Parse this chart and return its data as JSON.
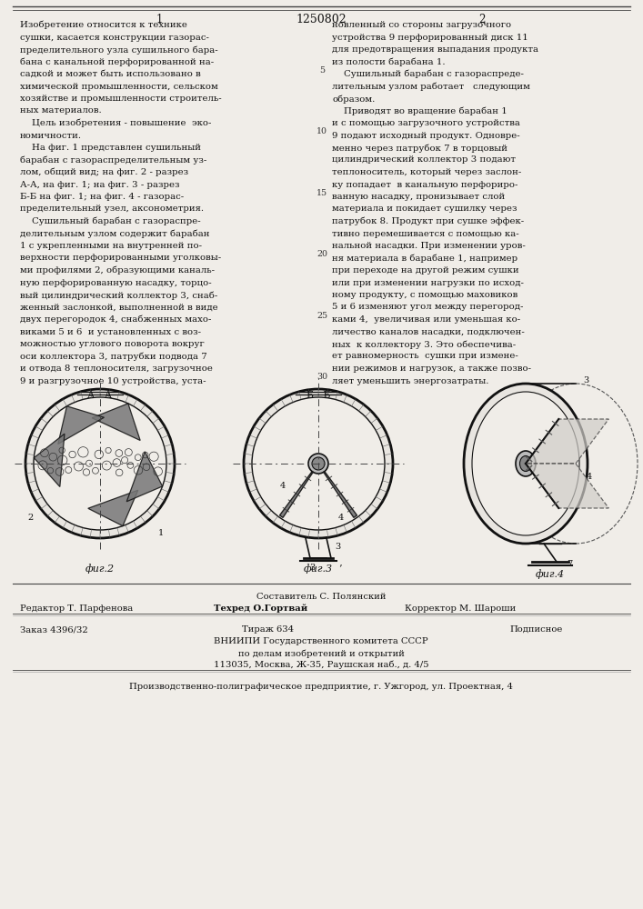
{
  "bg_color": "#f0ede8",
  "patent_number": "1250802",
  "c1_lines": [
    "Изобретение относится к технике",
    "сушки, касается конструкции газорас-",
    "пределительного узла сушильного бара-",
    "бана с канальной перфорированной на-",
    "садкой и может быть использовано в",
    "химической промышленности, сельском",
    "хозяйстве и промышленности строитель-",
    "ных материалов.",
    "    Цель изобретения - повышение  эко-",
    "номичности.",
    "    На фиг. 1 представлен сушильный",
    "барабан с газораспределительным уз-",
    "лом, общий вид; на фиг. 2 - разрез",
    "А-А, на фиг. 1; на фиг. 3 - разрез",
    "Б-Б на фиг. 1; на фиг. 4 - газорас-",
    "пределительный узел, аксонометрия.",
    "    Сушильный барабан с газораспре-",
    "делительным узлом содержит барабан",
    "1 с укрепленными на внутренней по-",
    "верхности перфорированными уголковы-",
    "ми профилями 2, образующими каналь-",
    "ную перфорированную насадку, торцо-",
    "вый цилиндрический коллектор 3, снаб-",
    "женный заслонкой, выполненной в виде",
    "двух перегородок 4, снабженных махо-",
    "виками 5 и 6  и установленных с воз-",
    "можностью углового поворота вокруг",
    "оси коллектора 3, патрубки подвода 7",
    "и отвода 8 теплоносителя, загрузочное",
    "9 и разгрузочное 10 устройства, уста-"
  ],
  "c2_lines": [
    "новленный со стороны загрузочного",
    "устройства 9 перфорированный диск 11",
    "для предотвращения выпадания продукта",
    "из полости барабана 1.",
    "    Сушильный барабан с газораспреде-",
    "лительным узлом работает   следующим",
    "образом.",
    "    Приводят во вращение барабан 1",
    "и с помощью загрузочного устройства",
    "9 подают исходный продукт. Одновре-",
    "менно через патрубок 7 в торцовый",
    "цилиндрический коллектор 3 подают",
    "теплоноситель, который через заслон-",
    "ку попадает  в канальную перфориро-",
    "ванную насадку, пронизывает слой",
    "материала и покидает сушилку через",
    "патрубок 8. Продукт при сушке эффек-",
    "тивно перемешивается с помощью ка-",
    "нальной насадки. При изменении уров-",
    "ня материала в барабане 1, например",
    "при переходе на другой режим сушки",
    "или при изменении нагрузки по исход-",
    "ному продукту, с помощью маховиков",
    "5 и 6 изменяют угол между перегород-",
    "ками 4,  увеличивая или уменьшая ко-",
    "личество каналов насадки, подключен-",
    "ных  к коллектору 3. Это обеспечива-",
    "ет равномерность  сушки при измене-",
    "нии режимов и нагрузок, а также позво-",
    "ляет уменьшить энергозатраты."
  ],
  "line_numbers": [
    5,
    10,
    15,
    20,
    25,
    30
  ],
  "footer": {
    "compiled_by": "Составитель С. Полянский",
    "editor": "Редактор Т. Парфенова",
    "techred": "Техред О.Гортвай",
    "corrector": "Корректор М. Шароши",
    "order": "Заказ 4396/32",
    "print_run": "Тираж 634",
    "subscription": "Подписное",
    "org1": "ВНИИПИ Государственного комитета СССР",
    "org2": "по делам изобретений и открытий",
    "org3": "113035, Москва, Ж-35, Раушская наб., д. 4/5",
    "plant": "Производственно-полиграфическое предприятие, г. Ужгород, ул. Проектная, 4"
  }
}
